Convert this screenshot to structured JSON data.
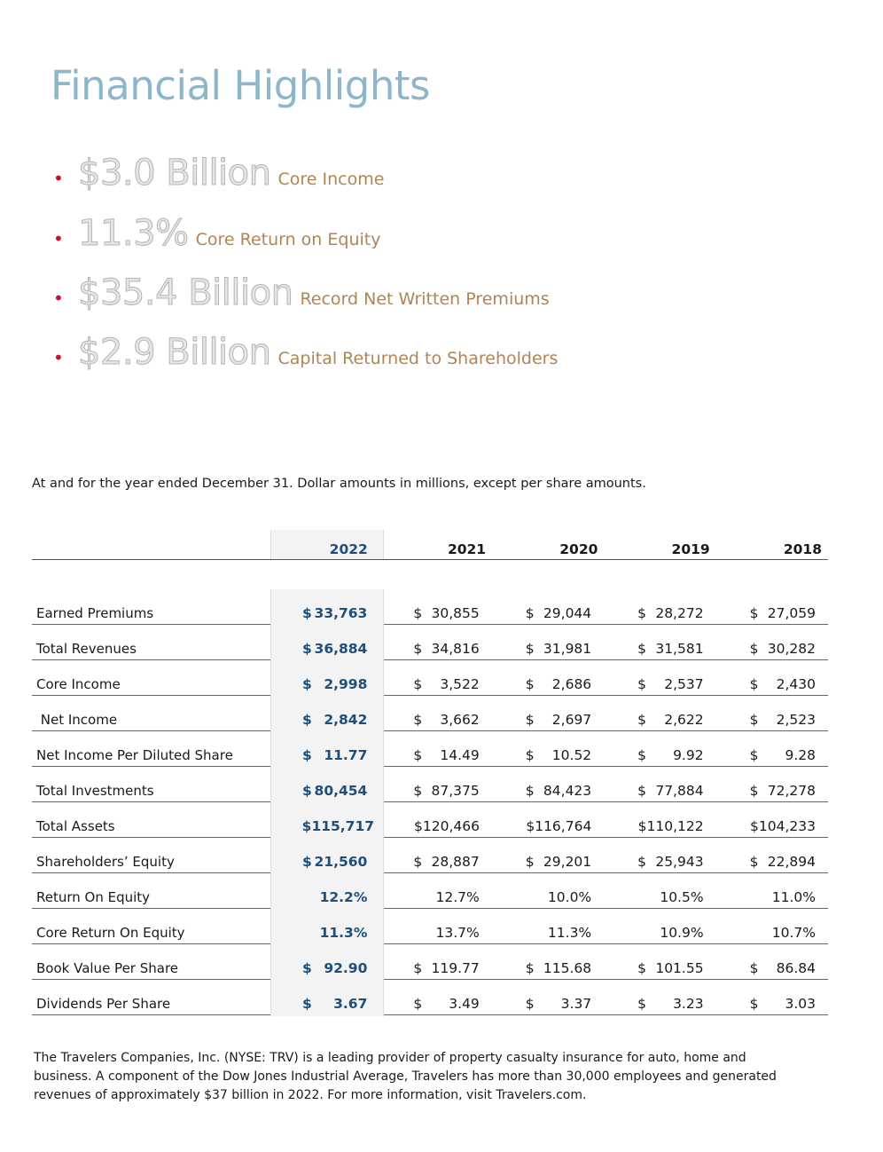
{
  "title": "Financial Highlights",
  "highlights": [
    {
      "value": "$3.0 Billion",
      "label": "Core Income"
    },
    {
      "value": "11.3%",
      "label": "Core Return on Equity"
    },
    {
      "value": "$35.4 Billion",
      "label": "Record Net Written Premiums"
    },
    {
      "value": "$2.9 Billion",
      "label": "Capital Returned to Shareholders"
    }
  ],
  "note": "At and for the year ended December 31. Dollar amounts in millions, except per share amounts.",
  "table": {
    "years": [
      "2022",
      "2021",
      "2020",
      "2019",
      "2018"
    ],
    "rows": [
      {
        "label": "Earned Premiums",
        "cells": [
          [
            "$",
            "33,763"
          ],
          [
            "$",
            "30,855"
          ],
          [
            "$",
            "29,044"
          ],
          [
            "$",
            "28,272"
          ],
          [
            "$",
            "27,059"
          ]
        ]
      },
      {
        "label": "Total Revenues",
        "cells": [
          [
            "$",
            "36,884"
          ],
          [
            "$",
            "34,816"
          ],
          [
            "$",
            "31,981"
          ],
          [
            "$",
            "31,581"
          ],
          [
            "$",
            "30,282"
          ]
        ]
      },
      {
        "label": "Core Income",
        "cells": [
          [
            "$",
            "2,998"
          ],
          [
            "$",
            "3,522"
          ],
          [
            "$",
            "2,686"
          ],
          [
            "$",
            "2,537"
          ],
          [
            "$",
            "2,430"
          ]
        ]
      },
      {
        "label": " Net Income",
        "cells": [
          [
            "$",
            "2,842"
          ],
          [
            "$",
            "3,662"
          ],
          [
            "$",
            "2,697"
          ],
          [
            "$",
            "2,622"
          ],
          [
            "$",
            "2,523"
          ]
        ]
      },
      {
        "label": "Net Income Per Diluted Share",
        "cells": [
          [
            "$",
            "11.77"
          ],
          [
            "$",
            "14.49"
          ],
          [
            "$",
            "10.52"
          ],
          [
            "$",
            "9.92"
          ],
          [
            "$",
            "9.28"
          ]
        ]
      },
      {
        "label": "Total Investments",
        "cells": [
          [
            "$",
            "80,454"
          ],
          [
            "$",
            "87,375"
          ],
          [
            "$",
            "84,423"
          ],
          [
            "$",
            "77,884"
          ],
          [
            "$",
            "72,278"
          ]
        ]
      },
      {
        "label": "Total Assets",
        "cells": [
          [
            "",
            "$115,717"
          ],
          [
            "",
            "$120,466"
          ],
          [
            "",
            "$116,764"
          ],
          [
            "",
            "$110,122"
          ],
          [
            "",
            "$104,233"
          ]
        ]
      },
      {
        "label": "Shareholders’ Equity",
        "cells": [
          [
            "$",
            "21,560"
          ],
          [
            "$",
            "28,887"
          ],
          [
            "$",
            "29,201"
          ],
          [
            "$",
            "25,943"
          ],
          [
            "$",
            "22,894"
          ]
        ]
      },
      {
        "label": "Return On Equity",
        "cells": [
          [
            "",
            "12.2%"
          ],
          [
            "",
            "12.7%"
          ],
          [
            "",
            "10.0%"
          ],
          [
            "",
            "10.5%"
          ],
          [
            "",
            "11.0%"
          ]
        ]
      },
      {
        "label": "Core Return On Equity",
        "cells": [
          [
            "",
            "11.3%"
          ],
          [
            "",
            "13.7%"
          ],
          [
            "",
            "11.3%"
          ],
          [
            "",
            "10.9%"
          ],
          [
            "",
            "10.7%"
          ]
        ]
      },
      {
        "label": "Book Value Per Share",
        "cells": [
          [
            "$",
            "92.90"
          ],
          [
            "$",
            "119.77"
          ],
          [
            "$",
            "115.68"
          ],
          [
            "$",
            "101.55"
          ],
          [
            "$",
            "86.84"
          ]
        ]
      },
      {
        "label": "Dividends Per Share",
        "cells": [
          [
            "$",
            "3.67"
          ],
          [
            "$",
            "3.49"
          ],
          [
            "$",
            "3.37"
          ],
          [
            "$",
            "3.23"
          ],
          [
            "$",
            "3.03"
          ]
        ]
      }
    ]
  },
  "footer": "The Travelers Companies, Inc. (NYSE: TRV) is a leading provider of property casualty insurance for auto, home and business. A component of the Dow Jones Industrial Average, Travelers has more than 30,000 employees and generated revenues of approximately $37 billion in 2022. For more information, visit Travelers.com.",
  "colors": {
    "title": "#8db6ca",
    "bullet": "#c8102e",
    "highlight_label": "#b08556",
    "current_year": "#1f4e79"
  }
}
